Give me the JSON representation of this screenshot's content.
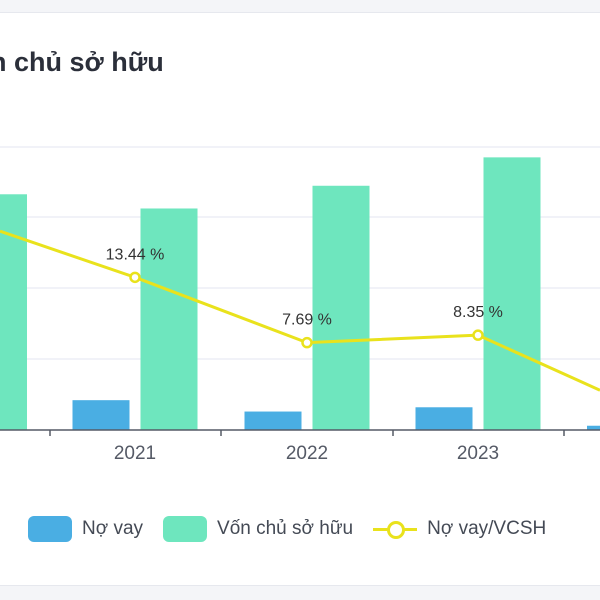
{
  "title": "n chủ sở hữu",
  "legend": {
    "debt": "Nợ vay",
    "equity": "Vốn chủ sở hữu",
    "ratio": "Nợ vay/VCSH"
  },
  "colors": {
    "debt": "#4aaee3",
    "equity": "#6ee6be",
    "ratio": "#e9e21c",
    "grid": "#e3e6f0",
    "axis": "#555a66"
  },
  "chart_data": {
    "type": "bar",
    "categories": [
      "2021",
      "2022",
      "2023"
    ],
    "series": [
      {
        "name": "Nợ vay",
        "type": "bar",
        "values": [
          10.5,
          6.5,
          8.0
        ]
      },
      {
        "name": "Vốn chủ sở hữu",
        "type": "bar",
        "values": [
          78,
          86,
          96
        ]
      },
      {
        "name": "Nợ vay/VCSH",
        "type": "line",
        "values": [
          13.44,
          7.69,
          8.35
        ],
        "labels": [
          "13.44 %",
          "7.69 %",
          "8.35 %"
        ]
      }
    ],
    "partial_left": {
      "equity": 83,
      "ratio": 17.5
    },
    "partial_right": {
      "debt": 1.5,
      "ratio": 3.5
    },
    "ylim": [
      0,
      100
    ],
    "ratio_ylim": [
      0,
      25
    ],
    "gridlines": [
      25,
      50,
      75
    ],
    "grid": true,
    "legend_position": "bottom"
  }
}
